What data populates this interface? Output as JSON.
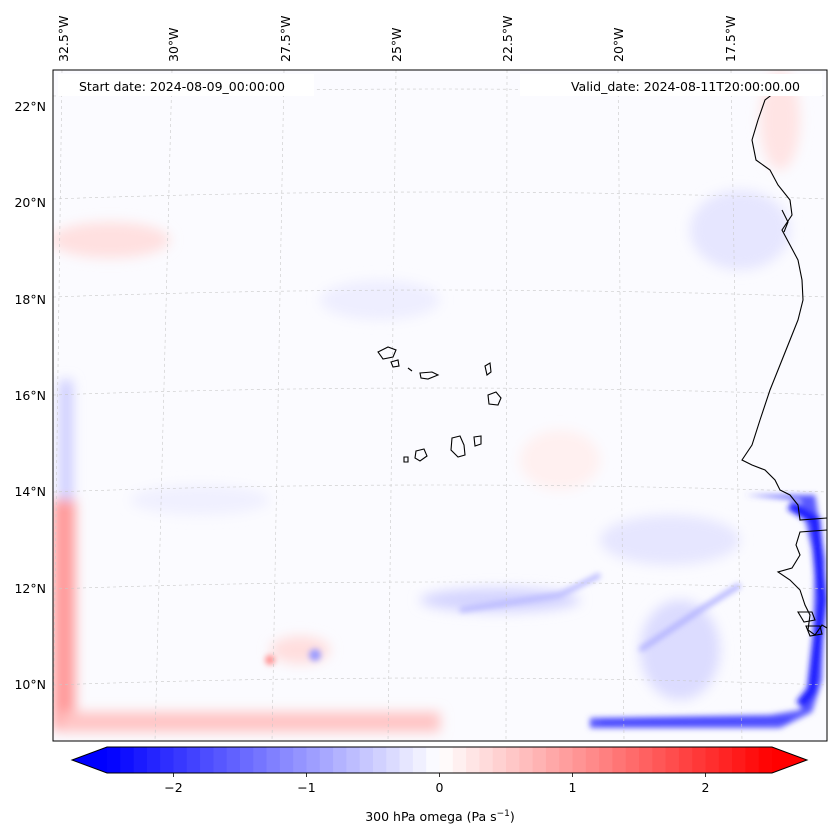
{
  "map": {
    "start_label": "Start date: 2024-08-09_00:00:00",
    "valid_label": "Valid_date: 2024-08-11T20:00:00.00",
    "lon_labels": [
      "32.5°W",
      "30°W",
      "27.5°W",
      "25°W",
      "22.5°W",
      "20°W",
      "17.5°W"
    ],
    "lat_labels": [
      "22°N",
      "20°N",
      "18°N",
      "16°N",
      "14°N",
      "12°N",
      "10°N"
    ],
    "variable": "300 hPa omega",
    "extent": {
      "lon_min": -33.0,
      "lon_max": -15.5,
      "lat_min": 8.9,
      "lat_max": 22.8
    }
  },
  "colorbar": {
    "label_text": "300 hPa omega (Pa s",
    "label_sup": "−1",
    "label_end": ")",
    "ticks": [
      "−2",
      "−1",
      "0",
      "1",
      "2"
    ],
    "tick_values": [
      -2,
      -1,
      0,
      1,
      2
    ],
    "vmin": -2.5,
    "vmax": 2.5,
    "levels": 50,
    "extend": "both",
    "colormap": "bwr",
    "color_low": "#0000ff",
    "color_mid": "#ffffff",
    "color_high": "#ff0000"
  }
}
